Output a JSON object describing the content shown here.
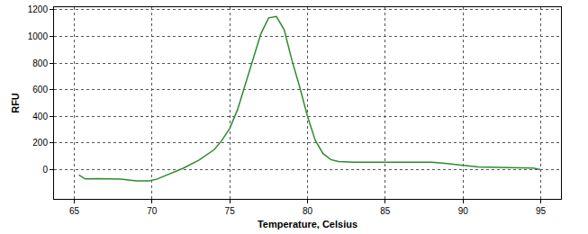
{
  "chart_data": {
    "type": "line",
    "x_label": "Temperature, Celsius",
    "y_label": "RFU",
    "x": [
      65.3,
      65.7,
      66.5,
      67.5,
      68,
      69,
      69.8,
      70.3,
      71,
      72,
      73,
      74,
      74.5,
      75,
      75.5,
      76,
      76.5,
      77,
      77.5,
      78,
      78.5,
      79,
      79.5,
      80,
      80.5,
      81,
      81.5,
      82,
      83,
      85,
      88,
      89,
      90,
      91,
      93,
      94.5,
      95
    ],
    "values": [
      -40,
      -70,
      -68,
      -68,
      -72,
      -85,
      -85,
      -72,
      -40,
      10,
      70,
      150,
      220,
      310,
      450,
      640,
      840,
      1020,
      1140,
      1150,
      1050,
      820,
      620,
      400,
      220,
      120,
      75,
      60,
      55,
      55,
      55,
      45,
      30,
      20,
      15,
      12,
      0
    ],
    "color": "#2e8b2e",
    "xlim": [
      63.7,
      96.3
    ],
    "xticks": [
      65,
      70,
      75,
      80,
      85,
      90,
      95
    ],
    "ylim": [
      -220,
      1220
    ],
    "yticks": [
      0,
      200,
      400,
      600,
      800,
      1000,
      1200
    ],
    "grid": true
  }
}
